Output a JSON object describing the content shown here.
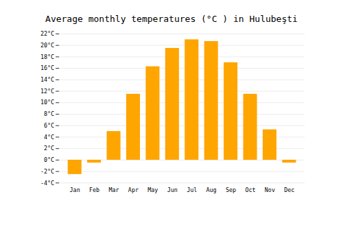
{
  "chart_data": {
    "type": "bar",
    "title": "Average monthly temperatures (°C ) in Hulubeşti",
    "categories": [
      "Jan",
      "Feb",
      "Mar",
      "Apr",
      "May",
      "Jun",
      "Jul",
      "Aug",
      "Sep",
      "Oct",
      "Nov",
      "Dec"
    ],
    "values": [
      -2.5,
      -0.5,
      5.0,
      11.5,
      16.3,
      19.5,
      21.0,
      20.7,
      17.0,
      11.5,
      5.3,
      -0.5
    ],
    "color": "#FFA500",
    "ylim": [
      -4,
      22
    ],
    "yticks": [
      {
        "value": -4,
        "label": "-4°C"
      },
      {
        "value": -2,
        "label": "-2°C"
      },
      {
        "value": 0,
        "label": "0°C"
      },
      {
        "value": 2,
        "label": "2°C"
      },
      {
        "value": 4,
        "label": "4°C"
      },
      {
        "value": 6,
        "label": "6°C"
      },
      {
        "value": 8,
        "label": "8°C"
      },
      {
        "value": 10,
        "label": "10°C"
      },
      {
        "value": 12,
        "label": "12°C"
      },
      {
        "value": 14,
        "label": "14°C"
      },
      {
        "value": 16,
        "label": "16°C"
      },
      {
        "value": 18,
        "label": "18°C"
      },
      {
        "value": 20,
        "label": "20°C"
      },
      {
        "value": 22,
        "label": "22°C"
      }
    ],
    "grid": true
  }
}
